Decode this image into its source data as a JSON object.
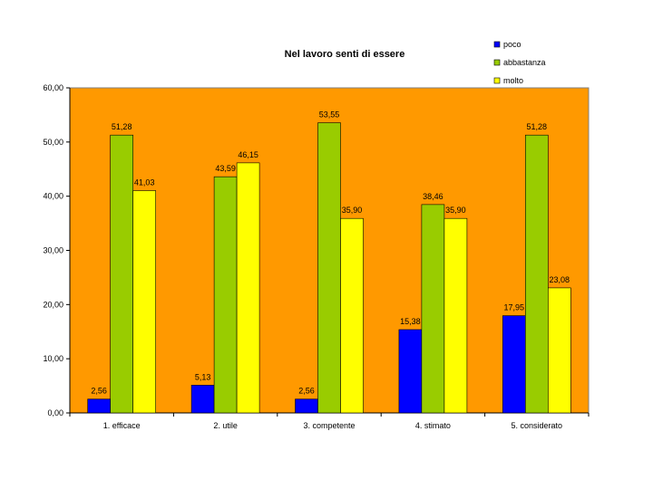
{
  "chart_data": {
    "type": "bar",
    "title": "Nel lavoro senti di essere",
    "xlabel": "",
    "ylabel": "",
    "ylim": [
      0,
      60
    ],
    "yticks": [
      "0,00",
      "10,00",
      "20,00",
      "30,00",
      "40,00",
      "50,00",
      "60,00"
    ],
    "ytick_values": [
      0,
      10,
      20,
      30,
      40,
      50,
      60
    ],
    "categories": [
      "1. efficace",
      "2. utile",
      "3. competente",
      "4. stimato",
      "5. considerato"
    ],
    "series": [
      {
        "name": "poco",
        "color": "#0000FF",
        "values": [
          2.56,
          5.13,
          2.56,
          15.38,
          17.95
        ],
        "labels": [
          "2,56",
          "5,13",
          "2,56",
          "15,38",
          "17,95"
        ]
      },
      {
        "name": "abbastanza",
        "color": "#99CC00",
        "values": [
          51.28,
          43.59,
          53.55,
          38.46,
          51.28
        ],
        "labels": [
          "51,28",
          "43,59",
          "53,55",
          "38,46",
          "51,28"
        ]
      },
      {
        "name": "molto",
        "color": "#FFFF00",
        "values": [
          41.03,
          46.15,
          35.9,
          35.9,
          23.08
        ],
        "labels": [
          "41,03",
          "46,15",
          "35,90",
          "35,90",
          "23,08"
        ]
      }
    ],
    "legend_position": "top-right",
    "plot_background": "#FF9900",
    "grid": false
  }
}
